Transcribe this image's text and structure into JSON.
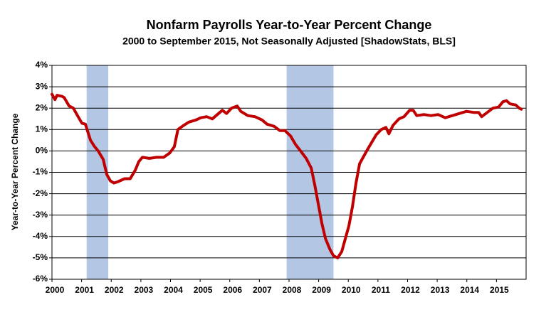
{
  "chart_data": {
    "type": "line",
    "title": "Nonfarm Payrolls Year-to-Year Percent Change",
    "subtitle": "2000 to September 2015, Not Seasonally Adjusted  [ShadowStats, BLS]",
    "y_label": "Year-to-Year Percent Change",
    "xlim": [
      2000,
      2016
    ],
    "xticks": [
      2000,
      2001,
      2002,
      2003,
      2004,
      2005,
      2006,
      2007,
      2008,
      2009,
      2010,
      2011,
      2012,
      2013,
      2014,
      2015
    ],
    "ylim": [
      -6,
      4
    ],
    "yticks": [
      {
        "value": -6,
        "label": "-6%"
      },
      {
        "value": -5,
        "label": "-5%"
      },
      {
        "value": -4,
        "label": "-4%"
      },
      {
        "value": -3,
        "label": "-3%"
      },
      {
        "value": -2,
        "label": "-2%"
      },
      {
        "value": -1,
        "label": "-1%"
      },
      {
        "value": 0,
        "label": "0%"
      },
      {
        "value": 1,
        "label": "1%"
      },
      {
        "value": 2,
        "label": "2%"
      },
      {
        "value": 3,
        "label": "3%"
      },
      {
        "value": 4,
        "label": "4%"
      }
    ],
    "grid": true,
    "shaded_ranges": [
      [
        2001.17,
        2001.9
      ],
      [
        2007.92,
        2009.5
      ]
    ],
    "shade_color": "#b3c6e4",
    "series": [
      {
        "color": "#c00000",
        "x": [
          2000,
          2000.1,
          2000.17,
          2000.34,
          2000.41,
          2000.58,
          2000.72,
          2000.84,
          2001.01,
          2001.13,
          2001.3,
          2001.44,
          2001.56,
          2001.73,
          2001.85,
          2001.97,
          2002.09,
          2002.21,
          2002.45,
          2002.64,
          2002.81,
          2002.93,
          2003.05,
          2003.29,
          2003.53,
          2003.77,
          2003.97,
          2004.13,
          2004.25,
          2004.45,
          2004.62,
          2004.86,
          2005.02,
          2005.22,
          2005.41,
          2005.58,
          2005.75,
          2005.89,
          2006.06,
          2006.25,
          2006.37,
          2006.61,
          2006.85,
          2007.09,
          2007.26,
          2007.5,
          2007.69,
          2007.86,
          2008.05,
          2008.22,
          2008.39,
          2008.58,
          2008.75,
          2008.87,
          2008.99,
          2009.11,
          2009.23,
          2009.38,
          2009.5,
          2009.64,
          2009.78,
          2009.9,
          2010.02,
          2010.14,
          2010.26,
          2010.38,
          2010.5,
          2010.62,
          2010.79,
          2010.94,
          2011.11,
          2011.27,
          2011.37,
          2011.51,
          2011.71,
          2011.88,
          2012.07,
          2012.19,
          2012.31,
          2012.55,
          2012.79,
          2013.03,
          2013.27,
          2013.51,
          2013.75,
          2013.99,
          2014.23,
          2014.4,
          2014.5,
          2014.69,
          2014.88,
          2015.07,
          2015.22,
          2015.34,
          2015.46,
          2015.65,
          2015.77,
          2015.84
        ],
        "values": [
          2.65,
          2.4,
          2.6,
          2.55,
          2.5,
          2.1,
          2.0,
          1.7,
          1.3,
          1.25,
          0.5,
          0.2,
          0,
          -0.4,
          -1.1,
          -1.4,
          -1.5,
          -1.45,
          -1.3,
          -1.3,
          -0.9,
          -0.5,
          -0.3,
          -0.35,
          -0.3,
          -0.3,
          -0.1,
          0.2,
          1.0,
          1.2,
          1.35,
          1.45,
          1.55,
          1.6,
          1.5,
          1.7,
          1.9,
          1.75,
          2.0,
          2.1,
          1.85,
          1.65,
          1.6,
          1.45,
          1.25,
          1.15,
          0.95,
          0.95,
          0.7,
          0.3,
          0,
          -0.35,
          -0.8,
          -1.6,
          -2.5,
          -3.4,
          -4.1,
          -4.6,
          -4.9,
          -5.0,
          -4.7,
          -4.1,
          -3.5,
          -2.6,
          -1.5,
          -0.6,
          -0.3,
          0,
          0.4,
          0.75,
          1.0,
          1.1,
          0.8,
          1.2,
          1.5,
          1.6,
          1.9,
          1.9,
          1.65,
          1.7,
          1.65,
          1.7,
          1.55,
          1.65,
          1.75,
          1.85,
          1.8,
          1.8,
          1.6,
          1.8,
          2.0,
          2.05,
          2.3,
          2.35,
          2.2,
          2.15,
          2.0,
          1.95
        ]
      }
    ]
  }
}
